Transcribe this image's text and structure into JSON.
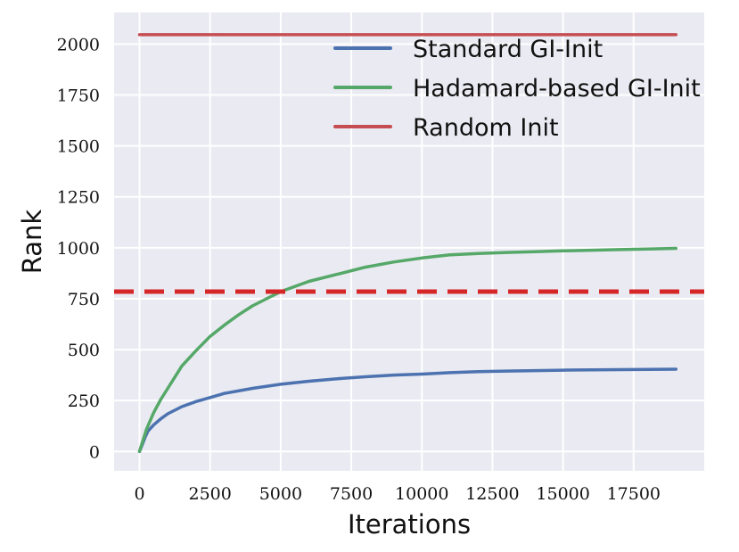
{
  "chart_data": {
    "type": "line",
    "xlabel": "Iterations",
    "ylabel": "Rank",
    "xlim": [
      -900,
      20000
    ],
    "ylim": [
      -95,
      2155
    ],
    "xticks": [
      0,
      2500,
      5000,
      7500,
      10000,
      12500,
      15000,
      17500
    ],
    "yticks": [
      0,
      250,
      500,
      750,
      1000,
      1250,
      1500,
      1750,
      2000
    ],
    "grid": true,
    "legend_position": "top-right",
    "colors": {
      "background": "#eaeaf2",
      "grid": "#ffffff",
      "standard": "#4c72b0",
      "hadamard": "#55a868",
      "random": "#c44e52",
      "threshold": "#d62728"
    },
    "series": [
      {
        "name": "Standard GI-Init",
        "color": "#4c72b0",
        "x": [
          0,
          100,
          200,
          300,
          500,
          750,
          1000,
          1500,
          2000,
          2500,
          3000,
          4000,
          5000,
          6000,
          7000,
          8000,
          9000,
          10000,
          11000,
          12000,
          13000,
          14000,
          15000,
          16000,
          17000,
          18000,
          19000
        ],
        "y": [
          0,
          35,
          70,
          100,
          130,
          160,
          185,
          220,
          245,
          265,
          285,
          310,
          330,
          345,
          357,
          367,
          375,
          380,
          387,
          392,
          395,
          397,
          399,
          401,
          402,
          403,
          404
        ]
      },
      {
        "name": "Hadamard-based GI-Init",
        "color": "#55a868",
        "x": [
          0,
          100,
          250,
          500,
          750,
          1000,
          1500,
          2000,
          2500,
          3000,
          3500,
          4000,
          4500,
          5000,
          6000,
          7000,
          8000,
          9000,
          10000,
          11000,
          12000,
          13000,
          14000,
          15000,
          16000,
          17000,
          18000,
          19000
        ],
        "y": [
          0,
          45,
          110,
          190,
          255,
          310,
          420,
          495,
          565,
          620,
          670,
          715,
          750,
          785,
          835,
          870,
          905,
          930,
          950,
          965,
          972,
          977,
          981,
          985,
          988,
          991,
          994,
          997
        ]
      },
      {
        "name": "Random Init",
        "color": "#c44e52",
        "x": [
          0,
          19000
        ],
        "y": [
          2046,
          2046
        ]
      }
    ],
    "reference_lines": [
      {
        "y": 785,
        "style": "dashed",
        "color": "#d62728"
      }
    ]
  }
}
